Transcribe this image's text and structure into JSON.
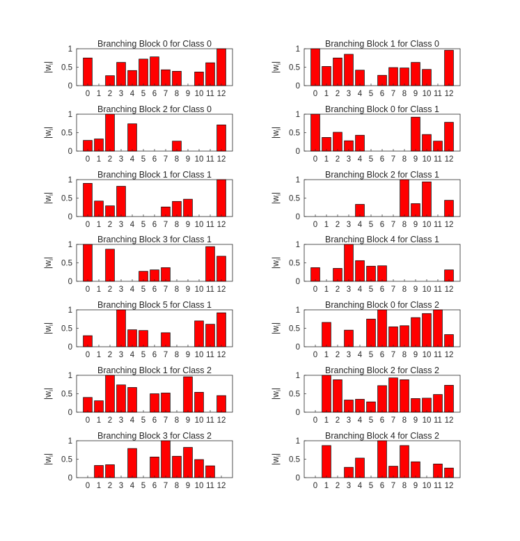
{
  "figure": {
    "background": "#ffffff",
    "bar_color": "#ff0000",
    "bar_edge": "#000000"
  },
  "chart_data": [
    {
      "type": "bar",
      "title": "Branching Block 0 for Class 0",
      "ylabel": "|w_i|",
      "categories": [
        "0",
        "1",
        "2",
        "3",
        "4",
        "5",
        "6",
        "7",
        "8",
        "9",
        "10",
        "11",
        "12"
      ],
      "values": [
        0.75,
        0,
        0.27,
        0.63,
        0.41,
        0.72,
        0.78,
        0.43,
        0.39,
        0,
        0.37,
        0.62,
        1.0
      ],
      "ylim": [
        0,
        1
      ],
      "yticks": [
        "0",
        "0.5",
        "1"
      ]
    },
    {
      "type": "bar",
      "title": "Branching Block 1 for Class 0",
      "ylabel": "|w_i|",
      "categories": [
        "0",
        "1",
        "2",
        "3",
        "4",
        "5",
        "6",
        "7",
        "8",
        "9",
        "10",
        "11",
        "12"
      ],
      "values": [
        1.0,
        0.52,
        0.75,
        0.85,
        0.42,
        0,
        0.28,
        0.49,
        0.48,
        0.63,
        0.44,
        0,
        0.96
      ],
      "ylim": [
        0,
        1
      ],
      "yticks": [
        "0",
        "0.5",
        "1"
      ]
    },
    {
      "type": "bar",
      "title": "Branching Block 2 for Class 0",
      "ylabel": "|w_i|",
      "categories": [
        "0",
        "1",
        "2",
        "3",
        "4",
        "5",
        "6",
        "7",
        "8",
        "9",
        "10",
        "11",
        "12"
      ],
      "values": [
        0.29,
        0.33,
        1.0,
        0,
        0.74,
        0,
        0,
        0,
        0.27,
        0,
        0,
        0,
        0.71
      ],
      "ylim": [
        0,
        1
      ],
      "yticks": [
        "0",
        "0.5",
        "1"
      ]
    },
    {
      "type": "bar",
      "title": "Branching Block 0 for Class 1",
      "ylabel": "|w_i|",
      "categories": [
        "0",
        "1",
        "2",
        "3",
        "4",
        "5",
        "6",
        "7",
        "8",
        "9",
        "10",
        "11",
        "12"
      ],
      "values": [
        1.0,
        0.37,
        0.51,
        0.28,
        0.43,
        0,
        0,
        0,
        0,
        0.92,
        0.45,
        0.27,
        0.78
      ],
      "ylim": [
        0,
        1
      ],
      "yticks": [
        "0",
        "0.5",
        "1"
      ]
    },
    {
      "type": "bar",
      "title": "Branching Block 1 for Class 1",
      "ylabel": "|w_i|",
      "categories": [
        "0",
        "1",
        "2",
        "3",
        "4",
        "5",
        "6",
        "7",
        "8",
        "9",
        "10",
        "11",
        "12"
      ],
      "values": [
        0.9,
        0.42,
        0.29,
        0.82,
        0,
        0,
        0,
        0.26,
        0.41,
        0.47,
        0,
        0,
        1.0
      ],
      "ylim": [
        0,
        1
      ],
      "yticks": [
        "0",
        "0.5",
        "1"
      ]
    },
    {
      "type": "bar",
      "title": "Branching Block 2 for Class 1",
      "ylabel": "|w_i|",
      "categories": [
        "0",
        "1",
        "2",
        "3",
        "4",
        "5",
        "6",
        "7",
        "8",
        "9",
        "10",
        "11",
        "12"
      ],
      "values": [
        0,
        0,
        0,
        0,
        0.33,
        0,
        0,
        0,
        1.0,
        0.35,
        0.94,
        0,
        0.44
      ],
      "ylim": [
        0,
        1
      ],
      "yticks": [
        "0",
        "0.5",
        "1"
      ]
    },
    {
      "type": "bar",
      "title": "Branching Block 3 for Class 1",
      "ylabel": "|w_i|",
      "categories": [
        "0",
        "1",
        "2",
        "3",
        "4",
        "5",
        "6",
        "7",
        "8",
        "9",
        "10",
        "11",
        "12"
      ],
      "values": [
        1.0,
        0,
        0.87,
        0,
        0,
        0.27,
        0.31,
        0.37,
        0,
        0,
        0,
        0.94,
        0.68
      ],
      "ylim": [
        0,
        1
      ],
      "yticks": [
        "0",
        "0.5",
        "1"
      ]
    },
    {
      "type": "bar",
      "title": "Branching Block 4 for Class 1",
      "ylabel": "|w_i|",
      "categories": [
        "0",
        "1",
        "2",
        "3",
        "4",
        "5",
        "6",
        "7",
        "8",
        "9",
        "10",
        "11",
        "12"
      ],
      "values": [
        0.37,
        0,
        0.35,
        1.0,
        0.56,
        0.41,
        0.42,
        0,
        0,
        0,
        0,
        0,
        0.31
      ],
      "ylim": [
        0,
        1
      ],
      "yticks": [
        "0",
        "0.5",
        "1"
      ]
    },
    {
      "type": "bar",
      "title": "Branching Block 5 for Class 1",
      "ylabel": "|w_i|",
      "categories": [
        "0",
        "1",
        "2",
        "3",
        "4",
        "5",
        "6",
        "7",
        "8",
        "9",
        "10",
        "11",
        "12"
      ],
      "values": [
        0.3,
        0,
        0,
        1.0,
        0.46,
        0.44,
        0,
        0.38,
        0,
        0,
        0.7,
        0.61,
        0.92
      ],
      "ylim": [
        0,
        1
      ],
      "yticks": [
        "0",
        "0.5",
        "1"
      ]
    },
    {
      "type": "bar",
      "title": "Branching Block 0 for Class 2",
      "ylabel": "|w_i|",
      "categories": [
        "0",
        "1",
        "2",
        "3",
        "4",
        "5",
        "6",
        "7",
        "8",
        "9",
        "10",
        "11",
        "12"
      ],
      "values": [
        0,
        0.66,
        0,
        0.45,
        0,
        0.75,
        1.0,
        0.54,
        0.57,
        0.79,
        0.9,
        1.0,
        0.33
      ],
      "ylim": [
        0,
        1
      ],
      "yticks": [
        "0",
        "0.5",
        "1"
      ]
    },
    {
      "type": "bar",
      "title": "Branching Block 1 for Class 2",
      "ylabel": "|w_i|",
      "categories": [
        "0",
        "1",
        "2",
        "3",
        "4",
        "5",
        "6",
        "7",
        "8",
        "9",
        "10",
        "11",
        "12"
      ],
      "values": [
        0.4,
        0.31,
        1.0,
        0.74,
        0.67,
        0,
        0.5,
        0.52,
        0,
        0.96,
        0.54,
        0,
        0.45
      ],
      "ylim": [
        0,
        1
      ],
      "yticks": [
        "0",
        "0.5",
        "1"
      ]
    },
    {
      "type": "bar",
      "title": "Branching Block 2 for Class 2",
      "ylabel": "|w_i|",
      "categories": [
        "0",
        "1",
        "2",
        "3",
        "4",
        "5",
        "6",
        "7",
        "8",
        "9",
        "10",
        "11",
        "12"
      ],
      "values": [
        0,
        1.0,
        0.88,
        0.33,
        0.35,
        0.28,
        0.72,
        0.93,
        0.88,
        0.37,
        0.38,
        0.48,
        0.73
      ],
      "ylim": [
        0,
        1
      ],
      "yticks": [
        "0",
        "0.5",
        "1"
      ]
    },
    {
      "type": "bar",
      "title": "Branching Block 3 for Class 2",
      "ylabel": "|w_i|",
      "categories": [
        "0",
        "1",
        "2",
        "3",
        "4",
        "5",
        "6",
        "7",
        "8",
        "9",
        "10",
        "11",
        "12"
      ],
      "values": [
        0,
        0.33,
        0.35,
        0,
        0.79,
        0,
        0.56,
        1.0,
        0.58,
        0.82,
        0.49,
        0.32,
        0
      ],
      "ylim": [
        0,
        1
      ],
      "yticks": [
        "0",
        "0.5",
        "1"
      ]
    },
    {
      "type": "bar",
      "title": "Branching Block 4 for Class 2",
      "ylabel": "|w_i|",
      "categories": [
        "0",
        "1",
        "2",
        "3",
        "4",
        "5",
        "6",
        "7",
        "8",
        "9",
        "10",
        "11",
        "12"
      ],
      "values": [
        0,
        0.87,
        0,
        0.28,
        0.53,
        0,
        1.0,
        0.31,
        0.87,
        0.43,
        0,
        0.37,
        0.26
      ],
      "ylim": [
        0,
        1
      ],
      "yticks": [
        "0",
        "0.5",
        "1"
      ]
    }
  ]
}
